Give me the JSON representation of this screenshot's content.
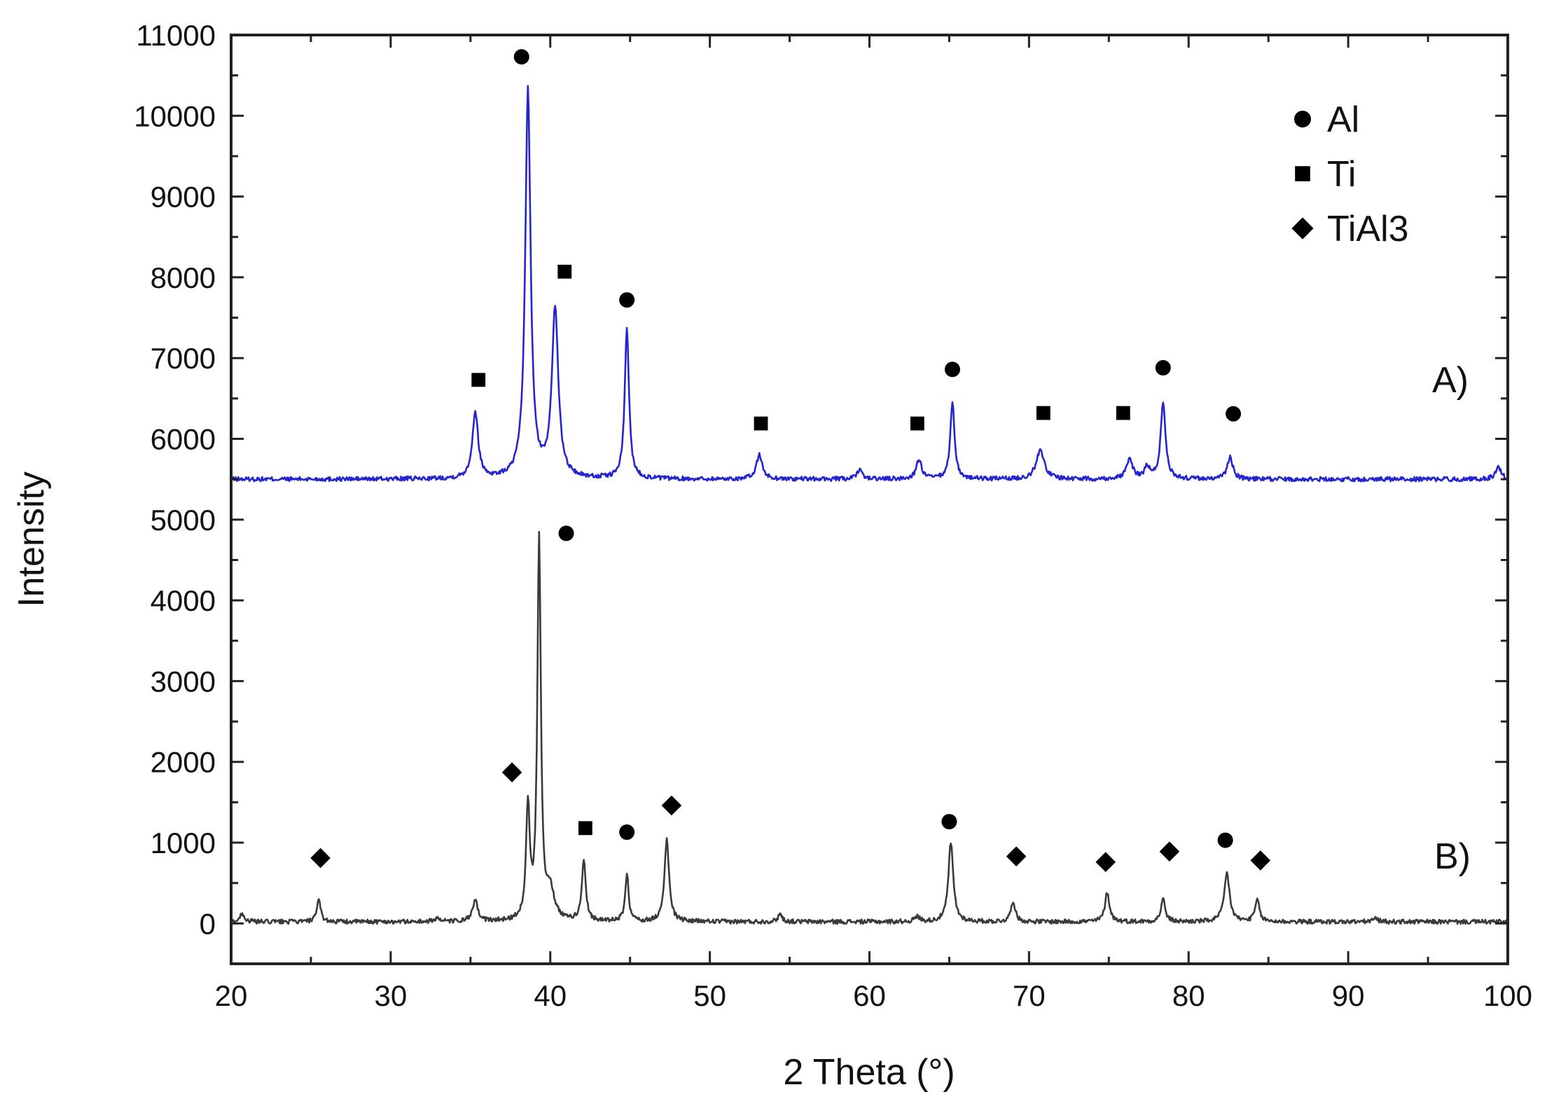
{
  "chart_data": {
    "type": "line",
    "xlabel": "2 Theta (°)",
    "ylabel": "Intensity",
    "xlim": [
      20,
      100
    ],
    "ylim": [
      -500,
      11000
    ],
    "x_ticks": [
      20,
      30,
      40,
      50,
      60,
      70,
      80,
      90,
      100
    ],
    "y_ticks": [
      0,
      1000,
      2000,
      3000,
      4000,
      5000,
      6000,
      7000,
      8000,
      9000,
      10000,
      11000
    ],
    "grid": false,
    "legend_position": "top-right",
    "legend": [
      {
        "label": "Al",
        "marker": "circle"
      },
      {
        "label": "Ti",
        "marker": "square"
      },
      {
        "label": "TiAl3",
        "marker": "diamond"
      }
    ],
    "series": [
      {
        "name": "A)",
        "color": "#2525d0",
        "baseline": 5500,
        "peaks": [
          {
            "x": 35.3,
            "y": 6320,
            "w": 0.22
          },
          {
            "x": 38.6,
            "y": 10300,
            "w": 0.2
          },
          {
            "x": 40.3,
            "y": 7600,
            "w": 0.24
          },
          {
            "x": 44.8,
            "y": 7350,
            "w": 0.16
          },
          {
            "x": 53.1,
            "y": 5800,
            "w": 0.22
          },
          {
            "x": 59.4,
            "y": 5610,
            "w": 0.2
          },
          {
            "x": 63.1,
            "y": 5740,
            "w": 0.2
          },
          {
            "x": 65.2,
            "y": 6450,
            "w": 0.16
          },
          {
            "x": 70.7,
            "y": 5860,
            "w": 0.3
          },
          {
            "x": 76.3,
            "y": 5730,
            "w": 0.25
          },
          {
            "x": 77.4,
            "y": 5640,
            "w": 0.2
          },
          {
            "x": 78.4,
            "y": 6450,
            "w": 0.18
          },
          {
            "x": 82.6,
            "y": 5780,
            "w": 0.2
          },
          {
            "x": 99.4,
            "y": 5650,
            "w": 0.22
          }
        ]
      },
      {
        "name": "B)",
        "color": "#3a3a3a",
        "baseline": 20,
        "peaks": [
          {
            "x": 20.7,
            "y": 130,
            "w": 0.15
          },
          {
            "x": 25.5,
            "y": 290,
            "w": 0.14
          },
          {
            "x": 32.9,
            "y": 70,
            "w": 0.15
          },
          {
            "x": 35.3,
            "y": 270,
            "w": 0.2
          },
          {
            "x": 38.6,
            "y": 1420,
            "w": 0.14
          },
          {
            "x": 39.3,
            "y": 4750,
            "w": 0.13
          },
          {
            "x": 40.0,
            "y": 380,
            "w": 0.3
          },
          {
            "x": 42.1,
            "y": 760,
            "w": 0.15
          },
          {
            "x": 44.8,
            "y": 600,
            "w": 0.13
          },
          {
            "x": 47.3,
            "y": 1030,
            "w": 0.17
          },
          {
            "x": 54.4,
            "y": 120,
            "w": 0.15
          },
          {
            "x": 63.0,
            "y": 80,
            "w": 0.2
          },
          {
            "x": 65.1,
            "y": 1000,
            "w": 0.18
          },
          {
            "x": 69.0,
            "y": 280,
            "w": 0.16
          },
          {
            "x": 74.9,
            "y": 380,
            "w": 0.17
          },
          {
            "x": 78.4,
            "y": 300,
            "w": 0.16
          },
          {
            "x": 82.4,
            "y": 620,
            "w": 0.2
          },
          {
            "x": 84.3,
            "y": 290,
            "w": 0.16
          },
          {
            "x": 91.7,
            "y": 60,
            "w": 0.2
          }
        ]
      }
    ],
    "annotations": [
      {
        "marker": "square",
        "x": 35.5,
        "y": 6730
      },
      {
        "marker": "circle",
        "x": 38.2,
        "y": 10730
      },
      {
        "marker": "square",
        "x": 40.9,
        "y": 8070
      },
      {
        "marker": "circle",
        "x": 44.8,
        "y": 7720
      },
      {
        "marker": "square",
        "x": 53.2,
        "y": 6190
      },
      {
        "marker": "square",
        "x": 63.0,
        "y": 6190
      },
      {
        "marker": "circle",
        "x": 65.2,
        "y": 6860
      },
      {
        "marker": "square",
        "x": 70.9,
        "y": 6320
      },
      {
        "marker": "square",
        "x": 75.9,
        "y": 6320
      },
      {
        "marker": "circle",
        "x": 78.4,
        "y": 6880
      },
      {
        "marker": "circle",
        "x": 82.8,
        "y": 6310
      },
      {
        "marker": "diamond",
        "x": 25.6,
        "y": 810
      },
      {
        "marker": "diamond",
        "x": 37.6,
        "y": 1870
      },
      {
        "marker": "circle",
        "x": 41.0,
        "y": 4830
      },
      {
        "marker": "square",
        "x": 42.2,
        "y": 1180
      },
      {
        "marker": "circle",
        "x": 44.8,
        "y": 1130
      },
      {
        "marker": "diamond",
        "x": 47.6,
        "y": 1460
      },
      {
        "marker": "circle",
        "x": 65.0,
        "y": 1260
      },
      {
        "marker": "diamond",
        "x": 69.2,
        "y": 830
      },
      {
        "marker": "diamond",
        "x": 74.8,
        "y": 760
      },
      {
        "marker": "diamond",
        "x": 78.8,
        "y": 890
      },
      {
        "marker": "circle",
        "x": 82.3,
        "y": 1030
      },
      {
        "marker": "diamond",
        "x": 84.5,
        "y": 780
      }
    ]
  }
}
